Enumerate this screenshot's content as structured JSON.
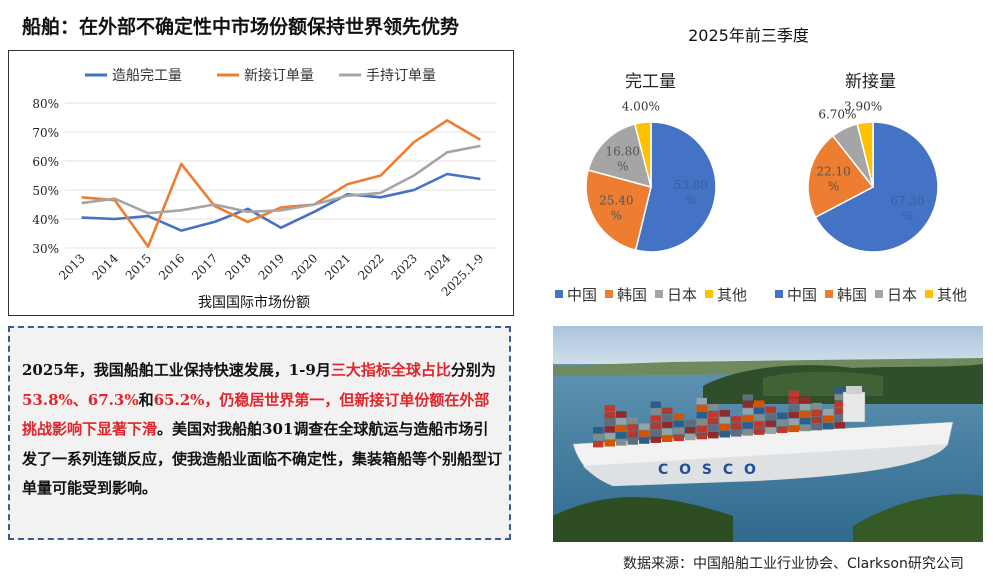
{
  "page": {
    "title": "船舶：在外部不确定性中市场份额保持世界领先优势",
    "source": "数据来源：中国船舶工业行业协会、Clarkson研究公司"
  },
  "text_block": {
    "p1": "2025年，我国船舶工业保持快速发展，1-9月",
    "p2": "三大指标全球占比",
    "p3": "分别为",
    "p4": "53.8%、67.3%",
    "p5": "和",
    "p6": "65.2%",
    "p7": "，",
    "p8": "仍稳居世界第一，但新接订单份额在外部挑战影响下显著下滑",
    "p9": "。美国对我船舶301调查在全球航运与造船市场引发了一系列连锁反应，使我造船业面临不确定性，集装箱船等个别船型订单量可能受到影响。"
  },
  "pie_header": {
    "title": "2025年前三季度"
  },
  "chart_data": [
    {
      "type": "line",
      "title": "我国国际市场份额",
      "categories": [
        "2013",
        "2014",
        "2015",
        "2016",
        "2017",
        "2018",
        "2019",
        "2020",
        "2021",
        "2022",
        "2023",
        "2024",
        "2025.1-9"
      ],
      "ylim": [
        30,
        80
      ],
      "yticks": [
        "30%",
        "40%",
        "50%",
        "60%",
        "70%",
        "80%"
      ],
      "series": [
        {
          "name": "造船完工量",
          "color": "#4472c4",
          "values": [
            40.5,
            40.0,
            41.0,
            36.0,
            39.0,
            43.5,
            37.0,
            42.5,
            48.5,
            47.5,
            50.0,
            55.5,
            53.8
          ]
        },
        {
          "name": "新接订单量",
          "color": "#ed7d31",
          "values": [
            47.5,
            46.5,
            30.5,
            59.0,
            44.5,
            39.0,
            44.0,
            45.0,
            52.0,
            55.0,
            66.5,
            74.0,
            67.3
          ]
        },
        {
          "name": "手持订单量",
          "color": "#a5a5a5",
          "values": [
            45.5,
            47.0,
            42.0,
            43.0,
            45.0,
            42.5,
            43.0,
            45.0,
            48.0,
            49.0,
            55.0,
            63.0,
            65.2
          ]
        }
      ]
    },
    {
      "type": "pie",
      "title": "完工量",
      "categories": [
        "中国",
        "韩国",
        "日本",
        "其他"
      ],
      "values": [
        53.8,
        25.4,
        16.8,
        4.0
      ],
      "labels": [
        "53.80\n%",
        "25.40\n%",
        "16.80\n%",
        "4.00%"
      ],
      "colors": [
        "#4472c4",
        "#ed7d31",
        "#a5a5a5",
        "#ffc000"
      ]
    },
    {
      "type": "pie",
      "title": "新接量",
      "categories": [
        "中国",
        "韩国",
        "日本",
        "其他"
      ],
      "values": [
        67.3,
        22.1,
        6.7,
        3.9
      ],
      "labels": [
        "67.30\n%",
        "22.10\n%",
        "6.70%",
        "3.90%"
      ],
      "colors": [
        "#4472c4",
        "#ed7d31",
        "#a5a5a5",
        "#ffc000"
      ]
    }
  ],
  "photo": {
    "hull_text": "C O S C O"
  }
}
